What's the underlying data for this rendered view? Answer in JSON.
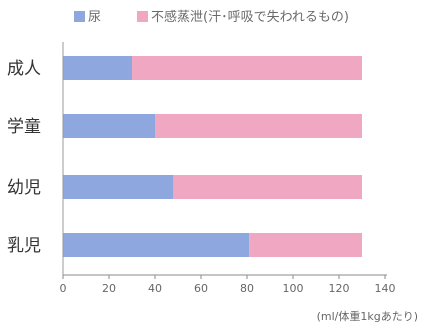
{
  "chart_data": {
    "type": "bar",
    "orientation": "horizontal",
    "stacked": true,
    "categories": [
      "成人",
      "学童",
      "幼児",
      "乳児"
    ],
    "series": [
      {
        "name": "尿",
        "values": [
          30,
          40,
          48,
          81
        ],
        "color": "#8ea7de"
      },
      {
        "name": "不感蒸泄(汗･呼吸で失われるもの)",
        "values": [
          100,
          90,
          82,
          49
        ],
        "color": "#f0a8c2"
      }
    ],
    "x_ticks": [
      0,
      20,
      40,
      60,
      80,
      100,
      120,
      140
    ],
    "xlim": [
      0,
      140
    ],
    "unit_label": "(ml/体重1kgあたり)",
    "legend_position": "top",
    "grid": false
  }
}
